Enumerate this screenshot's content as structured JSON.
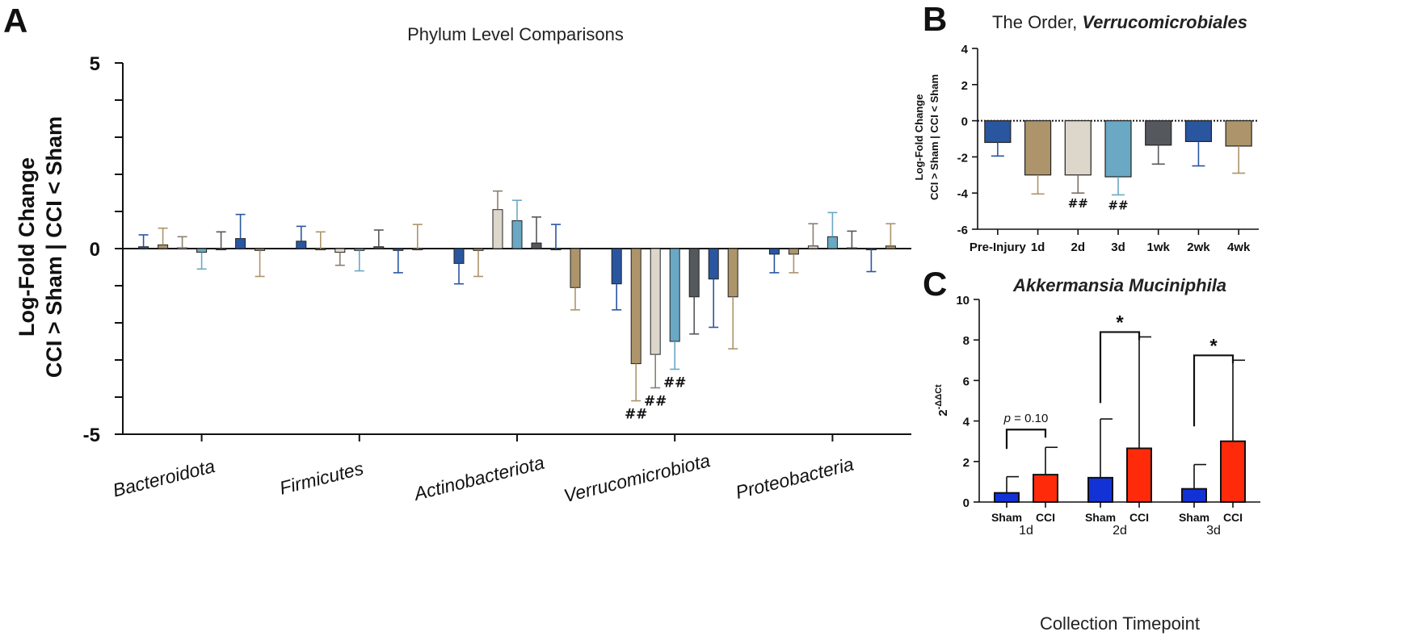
{
  "colors": {
    "navy": "#2a56a0",
    "tan": "#ad946a",
    "cream": "#ddd6cb",
    "teal": "#6aa8c4",
    "slate": "#55585c",
    "blue": "#1232d6",
    "red": "#ff2a0a"
  },
  "chart_data": [
    {
      "panel": "A",
      "type": "bar",
      "title": "Phylum Level Comparisons",
      "ylabel_line1": "Log-Fold Change",
      "ylabel_line2": "CCI > Sham  |  CCI < Sham",
      "ylim": [
        -5,
        5
      ],
      "yticks": [
        -5,
        0,
        5
      ],
      "categories": [
        "Bacteroidota",
        "Firmicutes",
        "Actinobacteriota",
        "Verrucomicrobiota",
        "Proteobacteria"
      ],
      "series": [
        {
          "color": "navy",
          "values": [
            0.05,
            0.2,
            -0.4,
            -0.95,
            -0.15
          ]
        },
        {
          "color": "tan",
          "values": [
            0.1,
            0.0,
            -0.05,
            -3.1,
            -0.15
          ]
        },
        {
          "color": "cream",
          "values": [
            0.02,
            -0.1,
            1.05,
            -2.85,
            0.07
          ]
        },
        {
          "color": "teal",
          "values": [
            -0.1,
            -0.05,
            0.75,
            -2.5,
            0.32
          ]
        },
        {
          "color": "slate",
          "values": [
            0.0,
            0.05,
            0.15,
            -1.3,
            0.02
          ]
        },
        {
          "color": "navy",
          "values": [
            0.27,
            -0.05,
            0.0,
            -0.82,
            -0.02
          ]
        },
        {
          "color": "tan",
          "values": [
            -0.05,
            0.0,
            -1.05,
            -1.3,
            0.07
          ]
        }
      ],
      "errors": [
        [
          0.32,
          0.4,
          0.55,
          0.7,
          0.5
        ],
        [
          0.45,
          0.45,
          0.7,
          1.0,
          0.5
        ],
        [
          0.3,
          0.35,
          0.5,
          0.9,
          0.6
        ],
        [
          0.45,
          0.55,
          0.55,
          0.75,
          0.65
        ],
        [
          0.45,
          0.45,
          0.7,
          1.0,
          0.45
        ],
        [
          0.65,
          0.6,
          0.65,
          1.3,
          0.6
        ],
        [
          0.7,
          0.65,
          0.6,
          1.4,
          0.6
        ]
      ],
      "annotations": [
        {
          "category": "Verrucomicrobiota",
          "series_index": 1,
          "text": "##"
        },
        {
          "category": "Verrucomicrobiota",
          "series_index": 2,
          "text": "##"
        },
        {
          "category": "Verrucomicrobiota",
          "series_index": 3,
          "text": "##"
        }
      ]
    },
    {
      "panel": "B",
      "type": "bar",
      "title_prefix": "The Order, ",
      "title_emphasis": "Verrucomicrobiales",
      "ylabel_line1": "Log-Fold Change",
      "ylabel_line2": "CCI > Sham  |  CCI < Sham",
      "ylim": [
        -6,
        4
      ],
      "yticks": [
        -6,
        -4,
        -2,
        0,
        2,
        4
      ],
      "categories": [
        "Pre-Injury",
        "1d",
        "2d",
        "3d",
        "1wk",
        "2wk",
        "4wk"
      ],
      "colors": [
        "navy",
        "tan",
        "cream",
        "teal",
        "slate",
        "navy",
        "tan"
      ],
      "values": [
        -1.2,
        -3.0,
        -3.0,
        -3.1,
        -1.35,
        -1.15,
        -1.4
      ],
      "errors": [
        0.75,
        1.05,
        1.0,
        1.0,
        1.05,
        1.35,
        1.5
      ],
      "annotations": [
        {
          "category": "2d",
          "text": "##"
        },
        {
          "category": "3d",
          "text": "##"
        }
      ]
    },
    {
      "panel": "C",
      "type": "bar",
      "title": "Akkermansia Muciniphila",
      "ylabel_base": "2",
      "ylabel_sup": "-ΔΔCt",
      "xlabel": "Collection Timepoint",
      "ylim": [
        0,
        10
      ],
      "yticks": [
        0,
        2,
        4,
        6,
        8,
        10
      ],
      "groups": [
        "1d",
        "2d",
        "3d"
      ],
      "series": [
        {
          "name": "Sham",
          "color": "blue",
          "values": [
            0.45,
            1.2,
            0.65
          ],
          "errors": [
            0.8,
            2.9,
            1.2
          ]
        },
        {
          "name": "CCI",
          "color": "red",
          "values": [
            1.35,
            2.65,
            3.0
          ],
          "errors": [
            1.35,
            5.5,
            4.0
          ]
        }
      ],
      "brackets": [
        {
          "group": "1d",
          "label_italic": "p",
          "label_rest": " = 0.10"
        },
        {
          "group": "2d",
          "label": "*"
        },
        {
          "group": "3d",
          "label": "*"
        }
      ]
    }
  ]
}
